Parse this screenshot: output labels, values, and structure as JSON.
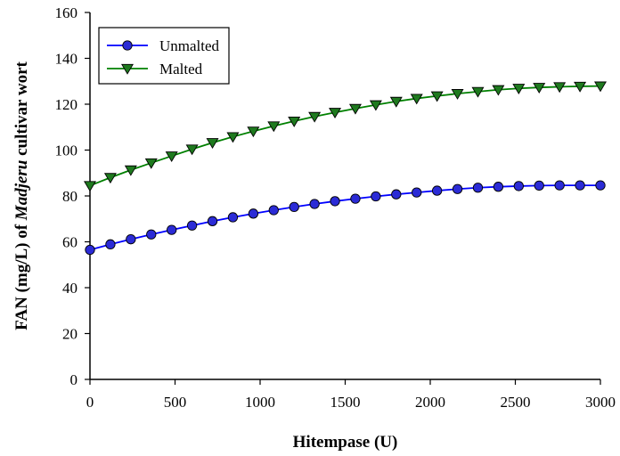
{
  "chart_data": {
    "type": "line",
    "xlabel": "Hitempase (U)",
    "ylabel": {
      "prefix": "FAN (mg/L) of ",
      "italic": "Madjeru",
      "suffix": " cultivar wort"
    },
    "xlim": [
      0,
      3000
    ],
    "ylim": [
      0,
      160
    ],
    "x_ticks": [
      "0",
      "500",
      "1000",
      "1500",
      "2000",
      "2500",
      "3000"
    ],
    "y_ticks": [
      "0",
      "20",
      "40",
      "60",
      "80",
      "100",
      "120",
      "140",
      "160"
    ],
    "grid": false,
    "legend_position": "top-left",
    "x": [
      0,
      120,
      240,
      360,
      480,
      600,
      720,
      840,
      960,
      1080,
      1200,
      1320,
      1440,
      1560,
      1680,
      1800,
      1920,
      2040,
      2160,
      2280,
      2400,
      2520,
      2640,
      2760,
      2880,
      3000
    ],
    "series": [
      {
        "name": "Unmalted",
        "color": "#0000ff",
        "marker": "circle",
        "marker_color": "#2b2bd6",
        "values": [
          56.5,
          58.9,
          61.1,
          63.2,
          65.2,
          67.1,
          69.0,
          70.7,
          72.3,
          73.8,
          75.2,
          76.5,
          77.7,
          78.8,
          79.8,
          80.7,
          81.5,
          82.3,
          83.0,
          83.6,
          84.0,
          84.3,
          84.5,
          84.6,
          84.6,
          84.6
        ]
      },
      {
        "name": "Malted",
        "color": "#008000",
        "marker": "triangle-down",
        "marker_color": "#1e7a1e",
        "values": [
          84.5,
          88.0,
          91.3,
          94.4,
          97.4,
          100.4,
          103.2,
          105.8,
          108.2,
          110.5,
          112.6,
          114.6,
          116.4,
          118.1,
          119.7,
          121.2,
          122.5,
          123.6,
          124.6,
          125.5,
          126.3,
          126.9,
          127.3,
          127.6,
          127.8,
          127.9
        ]
      }
    ]
  }
}
